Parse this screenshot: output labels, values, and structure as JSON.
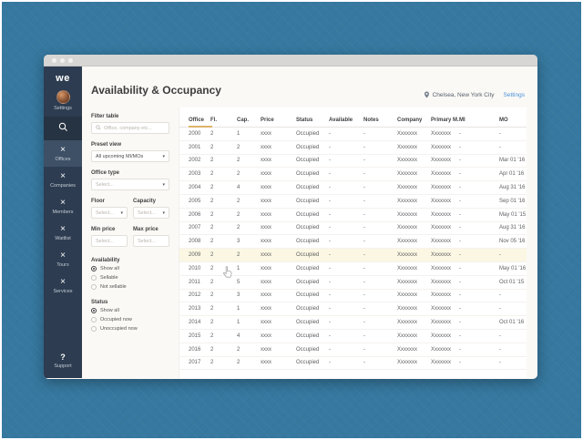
{
  "window": {
    "traffic_dots": 3
  },
  "sidebar": {
    "logo": "we",
    "profile_label": "Settings",
    "nav": [
      {
        "label": "Offices",
        "active": true
      },
      {
        "label": "Companies",
        "active": false
      },
      {
        "label": "Members",
        "active": false
      },
      {
        "label": "Waitlist",
        "active": false
      },
      {
        "label": "Tours",
        "active": false
      },
      {
        "label": "Services",
        "active": false
      }
    ],
    "nav_icon_glyph": "×",
    "support_icon": "?",
    "support_label": "Support"
  },
  "header": {
    "title": "Availability & Occupancy",
    "location": "Chelsea, New York City",
    "settings_link": "Settings"
  },
  "filters": {
    "filter_table": {
      "label": "Filter table",
      "placeholder": "Office, company etc..."
    },
    "preset_view": {
      "label": "Preset view",
      "value": "All upcoming MI/MOs"
    },
    "office_type": {
      "label": "Office type",
      "placeholder": "Select..."
    },
    "floor": {
      "label": "Floor",
      "placeholder": "Select..."
    },
    "capacity": {
      "label": "Capacity",
      "placeholder": "Select..."
    },
    "min_price": {
      "label": "Min price",
      "placeholder": "Select..."
    },
    "max_price": {
      "label": "Max price",
      "placeholder": "Select..."
    },
    "availability": {
      "label": "Availability",
      "options": [
        {
          "label": "Show all",
          "selected": true
        },
        {
          "label": "Sellable",
          "selected": false
        },
        {
          "label": "Not sellable",
          "selected": false
        }
      ]
    },
    "status": {
      "label": "Status",
      "options": [
        {
          "label": "Show all",
          "selected": true
        },
        {
          "label": "Occupied now",
          "selected": false
        },
        {
          "label": "Unoccupied now",
          "selected": false
        }
      ]
    }
  },
  "table": {
    "columns": [
      "Office",
      "Fl.",
      "Cap.",
      "Price",
      "Status",
      "Available",
      "Notes",
      "Company",
      "Primary M.",
      "MI",
      "MO"
    ],
    "sorted_column": "Office",
    "highlighted_office": "2009",
    "rows": [
      [
        "2000",
        "2",
        "1",
        "xxxx",
        "Occupied",
        "-",
        "-",
        "Xxxxxxx",
        "Xxxxxxx",
        "-",
        "-"
      ],
      [
        "2001",
        "2",
        "2",
        "xxxx",
        "Occupied",
        "-",
        "-",
        "Xxxxxxx",
        "Xxxxxxx",
        "-",
        "-"
      ],
      [
        "2002",
        "2",
        "2",
        "xxxx",
        "Occupied",
        "-",
        "-",
        "Xxxxxxx",
        "Xxxxxxx",
        "-",
        "Mar 01 '16"
      ],
      [
        "2003",
        "2",
        "2",
        "xxxx",
        "Occupied",
        "-",
        "-",
        "Xxxxxxx",
        "Xxxxxxx",
        "-",
        "Apr 01 '16"
      ],
      [
        "2004",
        "2",
        "4",
        "xxxx",
        "Occupied",
        "-",
        "-",
        "Xxxxxxx",
        "Xxxxxxx",
        "-",
        "Aug 31 '16"
      ],
      [
        "2005",
        "2",
        "2",
        "xxxx",
        "Occupied",
        "-",
        "-",
        "Xxxxxxx",
        "Xxxxxxx",
        "-",
        "Sep 01 '16"
      ],
      [
        "2006",
        "2",
        "2",
        "xxxx",
        "Occupied",
        "-",
        "-",
        "Xxxxxxx",
        "Xxxxxxx",
        "-",
        "May 01 '15"
      ],
      [
        "2007",
        "2",
        "2",
        "xxxx",
        "Occupied",
        "-",
        "-",
        "Xxxxxxx",
        "Xxxxxxx",
        "-",
        "Aug 31 '16"
      ],
      [
        "2008",
        "2",
        "3",
        "xxxx",
        "Occupied",
        "-",
        "-",
        "Xxxxxxx",
        "Xxxxxxx",
        "-",
        "Nov 05 '16"
      ],
      [
        "2009",
        "2",
        "2",
        "xxxx",
        "Occupied",
        "-",
        "-",
        "Xxxxxxx",
        "Xxxxxxx",
        "-",
        "-"
      ],
      [
        "2010",
        "2",
        "1",
        "xxxx",
        "Occupied",
        "-",
        "-",
        "Xxxxxxx",
        "Xxxxxxx",
        "-",
        "May 01 '16"
      ],
      [
        "2011",
        "2",
        "5",
        "xxxx",
        "Occupied",
        "-",
        "-",
        "Xxxxxxx",
        "Xxxxxxx",
        "-",
        "Oct 01 '15"
      ],
      [
        "2012",
        "2",
        "3",
        "xxxx",
        "Occupied",
        "-",
        "-",
        "Xxxxxxx",
        "Xxxxxxx",
        "-",
        "-"
      ],
      [
        "2013",
        "2",
        "1",
        "xxxx",
        "Occupied",
        "-",
        "-",
        "Xxxxxxx",
        "Xxxxxxx",
        "-",
        "-"
      ],
      [
        "2014",
        "2",
        "1",
        "xxxx",
        "Occupied",
        "-",
        "-",
        "Xxxxxxx",
        "Xxxxxxx",
        "-",
        "Oct 01 '16"
      ],
      [
        "2015",
        "2",
        "4",
        "xxxx",
        "Occupied",
        "-",
        "-",
        "Xxxxxxx",
        "Xxxxxxx",
        "-",
        "-"
      ],
      [
        "2016",
        "2",
        "2",
        "xxxx",
        "Occupied",
        "-",
        "-",
        "Xxxxxxx",
        "Xxxxxxx",
        "-",
        "-"
      ],
      [
        "2017",
        "2",
        "2",
        "xxxx",
        "Occupied",
        "-",
        "-",
        "Xxxxxxx",
        "Xxxxxxx",
        "-",
        "-"
      ]
    ]
  }
}
